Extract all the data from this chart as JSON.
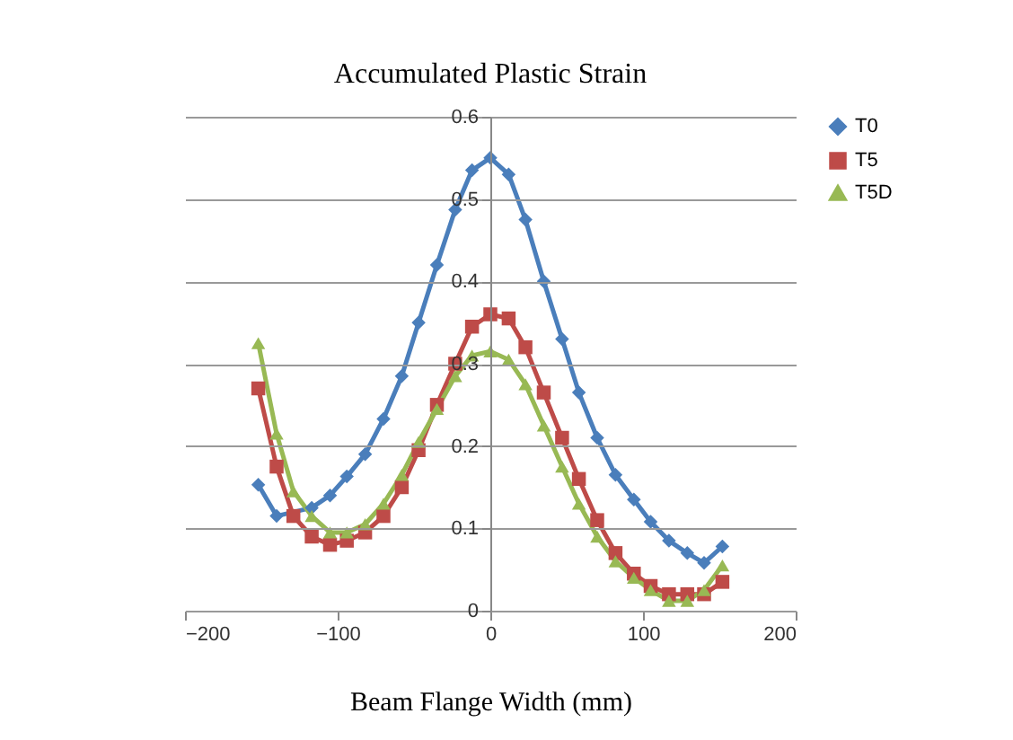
{
  "chart_data": {
    "type": "line",
    "title": "Accumulated Plastic Strain",
    "xlabel": "Beam Flange Width (mm)",
    "x": [
      -152,
      -140,
      -129,
      -117,
      -105,
      -94,
      -82,
      -70,
      -58,
      -47,
      -35,
      -23,
      -12,
      0,
      12,
      23,
      35,
      47,
      58,
      70,
      82,
      94,
      105,
      117,
      129,
      140,
      152
    ],
    "series": [
      {
        "name": "T0",
        "color": "#4a7ebb",
        "marker": "diamond",
        "values": [
          0.153,
          0.115,
          null,
          0.125,
          0.14,
          0.163,
          0.19,
          0.233,
          0.285,
          0.35,
          0.42,
          0.487,
          0.535,
          0.55,
          0.53,
          0.475,
          0.4,
          0.33,
          0.265,
          0.21,
          0.165,
          0.135,
          0.108,
          0.085,
          0.07,
          0.058,
          0.078
        ]
      },
      {
        "name": "T5",
        "color": "#be4b48",
        "marker": "square",
        "values": [
          0.27,
          0.175,
          0.115,
          0.09,
          0.08,
          0.085,
          0.095,
          0.115,
          0.15,
          0.195,
          0.25,
          0.3,
          0.345,
          0.36,
          0.355,
          0.32,
          0.265,
          0.21,
          0.16,
          0.11,
          0.07,
          0.045,
          0.03,
          0.02,
          0.02,
          0.02,
          0.035
        ]
      },
      {
        "name": "T5D",
        "color": "#98b954",
        "marker": "triangle",
        "values": [
          0.325,
          0.215,
          0.145,
          0.115,
          0.095,
          0.095,
          0.105,
          0.13,
          0.165,
          0.205,
          0.245,
          0.285,
          0.31,
          0.315,
          0.305,
          0.275,
          0.225,
          0.175,
          0.13,
          0.09,
          0.06,
          0.04,
          0.025,
          0.012,
          0.012,
          0.025,
          0.055
        ]
      }
    ],
    "xlim": [
      -200,
      200
    ],
    "xticks": [
      -200,
      -100,
      0,
      100,
      200
    ],
    "ylim": [
      0,
      0.6
    ],
    "yticks": [
      0,
      0.1,
      0.2,
      0.3,
      0.4,
      0.5,
      0.6
    ],
    "grid": "y",
    "legend": "right",
    "line_style": "solid"
  }
}
